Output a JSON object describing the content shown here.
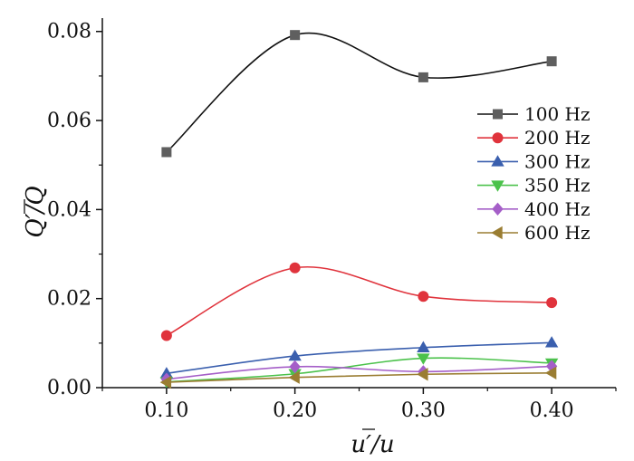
{
  "chart_data": {
    "type": "line",
    "xlabel": "u′/u",
    "ylabel": "Q′/Q",
    "xlim": [
      0.05,
      0.45
    ],
    "ylim": [
      0.0,
      0.083
    ],
    "x_ticks": [
      "0.10",
      "0.20",
      "0.30",
      "0.40"
    ],
    "y_ticks": [
      "0.00",
      "0.02",
      "0.04",
      "0.06",
      "0.08"
    ],
    "x": [
      0.1,
      0.2,
      0.3,
      0.4
    ],
    "legend_position": "right",
    "grid": false,
    "series": [
      {
        "name": "100 Hz",
        "color": "#5f5f5f",
        "line_color": "#111111",
        "marker": "square",
        "values": [
          0.0529,
          0.0792,
          0.0697,
          0.0733
        ]
      },
      {
        "name": "200 Hz",
        "color": "#e0333c",
        "line_color": "#e0333c",
        "marker": "circle",
        "values": [
          0.0117,
          0.0269,
          0.0205,
          0.0191
        ]
      },
      {
        "name": "300 Hz",
        "color": "#3a5fae",
        "line_color": "#3a5fae",
        "marker": "triangle-up",
        "values": [
          0.0032,
          0.0071,
          0.009,
          0.0101
        ]
      },
      {
        "name": "350 Hz",
        "color": "#4bc24b",
        "line_color": "#4bc24b",
        "marker": "triangle-down",
        "values": [
          0.0013,
          0.0031,
          0.0066,
          0.0055
        ]
      },
      {
        "name": "400 Hz",
        "color": "#a55fc8",
        "line_color": "#a55fc8",
        "marker": "diamond",
        "values": [
          0.0019,
          0.0047,
          0.0036,
          0.0048
        ]
      },
      {
        "name": "600 Hz",
        "color": "#9a7d32",
        "line_color": "#9a7d32",
        "marker": "triangle-left",
        "values": [
          0.0012,
          0.0023,
          0.003,
          0.0033
        ]
      }
    ]
  }
}
